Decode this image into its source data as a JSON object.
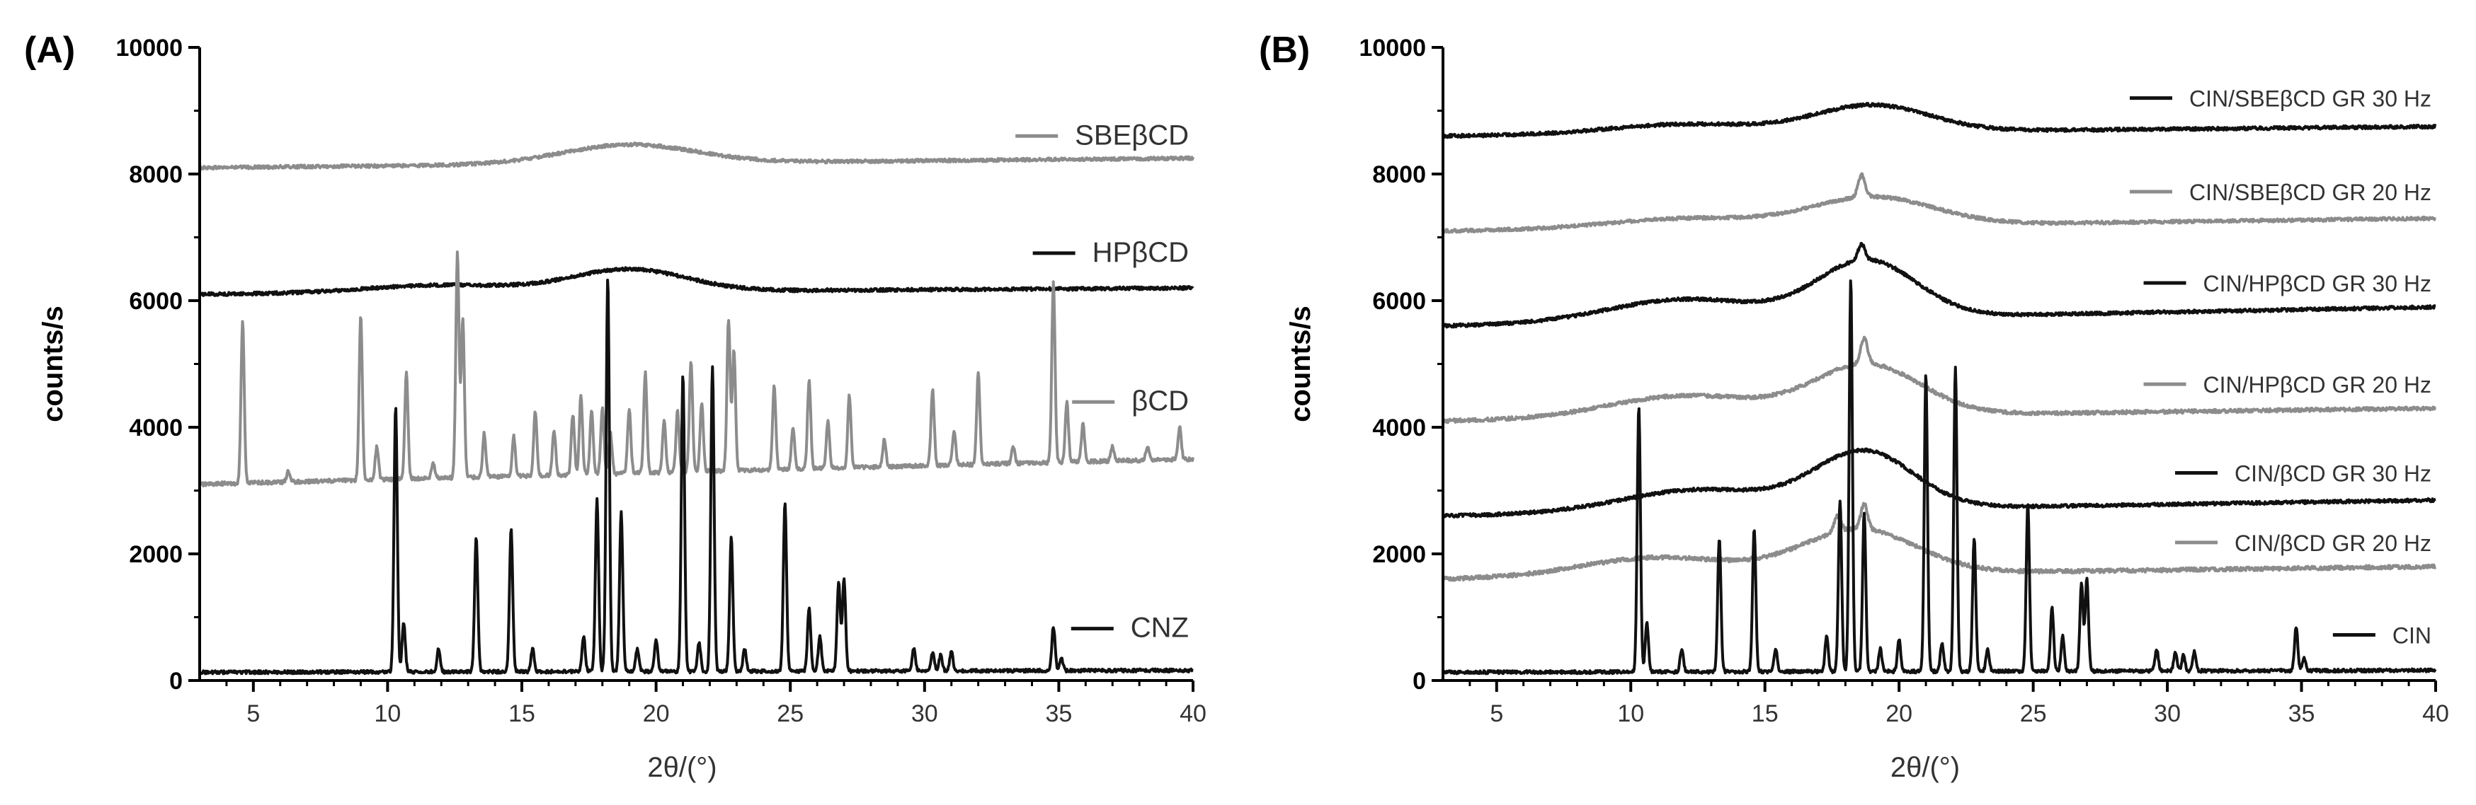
{
  "colors": {
    "black": "#111111",
    "gray": "#8c8c8c",
    "axis": "#000000"
  },
  "chart_data": [
    {
      "type": "line",
      "panel_label": "(A)",
      "xlabel": "2θ/(°)",
      "ylabel": "counts/s",
      "xlim": [
        3,
        40
      ],
      "ylim": [
        0,
        10000
      ],
      "x_ticks": [
        "5",
        "10",
        "15",
        "20",
        "25",
        "30",
        "35",
        "40"
      ],
      "y_ticks": [
        "0",
        "2000",
        "4000",
        "6000",
        "8000",
        "10000"
      ],
      "grid": false,
      "series": [
        {
          "name": "SBEβCD",
          "color": "gray",
          "type": "halo",
          "start": 8100,
          "end": 8250,
          "halo_center": 19,
          "halo_height": 300,
          "halo_width": 3.5,
          "broad_height": 0,
          "broad_center": 12,
          "noise": 25,
          "peaks": [],
          "legend_y": 8600
        },
        {
          "name": "HPβCD",
          "color": "black",
          "type": "halo",
          "start": 6100,
          "end": 6200,
          "halo_center": 19,
          "halo_height": 350,
          "halo_width": 3.0,
          "broad_height": 120,
          "broad_center": 12,
          "noise": 25,
          "peaks": [],
          "legend_y": 6750
        },
        {
          "name": "βCD",
          "color": "gray",
          "type": "crystalline",
          "baseline": 3100,
          "baseline_end": 3500,
          "noise": 30,
          "peaks": [
            [
              4.6,
              5650
            ],
            [
              6.3,
              3300
            ],
            [
              9.0,
              5750
            ],
            [
              9.6,
              3700
            ],
            [
              10.7,
              4850
            ],
            [
              11.7,
              3450
            ],
            [
              12.6,
              6750
            ],
            [
              12.8,
              5700
            ],
            [
              13.6,
              3900
            ],
            [
              14.7,
              3850
            ],
            [
              15.5,
              4250
            ],
            [
              16.2,
              3950
            ],
            [
              16.9,
              4200
            ],
            [
              17.2,
              4500
            ],
            [
              17.6,
              4250
            ],
            [
              18.0,
              4300
            ],
            [
              18.3,
              3900
            ],
            [
              19.0,
              4300
            ],
            [
              19.6,
              4850
            ],
            [
              20.3,
              4100
            ],
            [
              20.8,
              4250
            ],
            [
              21.3,
              5050
            ],
            [
              21.7,
              4400
            ],
            [
              22.7,
              5700
            ],
            [
              22.9,
              5200
            ],
            [
              24.4,
              4650
            ],
            [
              25.1,
              4000
            ],
            [
              25.7,
              4750
            ],
            [
              26.4,
              4100
            ],
            [
              27.2,
              4500
            ],
            [
              28.5,
              3800
            ],
            [
              30.3,
              4600
            ],
            [
              31.1,
              3950
            ],
            [
              32.0,
              4850
            ],
            [
              33.3,
              3700
            ],
            [
              34.8,
              6300
            ],
            [
              35.3,
              4400
            ],
            [
              35.9,
              4050
            ],
            [
              37.0,
              3700
            ],
            [
              38.3,
              3700
            ],
            [
              39.5,
              4000
            ]
          ],
          "legend_y": 4400
        },
        {
          "name": "CNZ",
          "color": "black",
          "type": "crystalline",
          "baseline": 130,
          "baseline_end": 160,
          "noise": 25,
          "peaks": [
            [
              10.3,
              4350
            ],
            [
              10.6,
              900
            ],
            [
              11.9,
              500
            ],
            [
              13.3,
              2250
            ],
            [
              14.6,
              2400
            ],
            [
              15.4,
              500
            ],
            [
              17.3,
              700
            ],
            [
              17.8,
              2850
            ],
            [
              18.2,
              6350
            ],
            [
              18.7,
              2650
            ],
            [
              19.3,
              500
            ],
            [
              20.0,
              650
            ],
            [
              21.0,
              4850
            ],
            [
              21.6,
              600
            ],
            [
              22.1,
              4950
            ],
            [
              22.8,
              2250
            ],
            [
              23.3,
              500
            ],
            [
              24.8,
              2800
            ],
            [
              25.7,
              1150
            ],
            [
              26.1,
              700
            ],
            [
              26.8,
              1550
            ],
            [
              27.0,
              1600
            ],
            [
              29.6,
              500
            ],
            [
              30.3,
              450
            ],
            [
              30.6,
              400
            ],
            [
              31.0,
              450
            ],
            [
              34.8,
              850
            ],
            [
              35.1,
              350
            ]
          ],
          "legend_y": 820
        }
      ]
    },
    {
      "type": "line",
      "panel_label": "(B)",
      "xlabel": "2θ/(°)",
      "ylabel": "counts/s",
      "xlim": [
        3,
        40
      ],
      "ylim": [
        0,
        10000
      ],
      "x_ticks": [
        "5",
        "10",
        "15",
        "20",
        "25",
        "30",
        "35",
        "40"
      ],
      "y_ticks": [
        "0",
        "2000",
        "4000",
        "6000",
        "8000",
        "10000"
      ],
      "grid": false,
      "series": [
        {
          "name": "CIN/SBEβCD GR 30 Hz",
          "color": "black",
          "type": "halo",
          "start": 8600,
          "end": 8750,
          "halo_center": 19,
          "halo_height": 420,
          "halo_width": 3.0,
          "broad_height": 150,
          "broad_center": 12,
          "noise": 25,
          "peaks": [],
          "legend_y": 9200
        },
        {
          "name": "CIN/SBEβCD GR 20 Hz",
          "color": "gray",
          "type": "halo",
          "start": 7100,
          "end": 7300,
          "halo_center": 19,
          "halo_height": 450,
          "halo_width": 3.2,
          "broad_height": 150,
          "broad_center": 12,
          "noise": 25,
          "peaks": [
            [
              18.6,
              350
            ]
          ],
          "legend_y": 7720
        },
        {
          "name": "CIN/HPβCD GR 30 Hz",
          "color": "black",
          "type": "halo",
          "start": 5600,
          "end": 5900,
          "halo_center": 18.8,
          "halo_height": 900,
          "halo_width": 2.6,
          "broad_height": 350,
          "broad_center": 12,
          "noise": 25,
          "peaks": [
            [
              18.6,
              250
            ]
          ],
          "legend_y": 6280
        },
        {
          "name": "CIN/HPβCD GR 20 Hz",
          "color": "gray",
          "type": "halo",
          "start": 4100,
          "end": 4300,
          "halo_center": 18.8,
          "halo_height": 800,
          "halo_width": 2.8,
          "broad_height": 350,
          "broad_center": 12,
          "noise": 28,
          "peaks": [
            [
              18.7,
              400
            ]
          ],
          "legend_y": 4680
        },
        {
          "name": "CIN/βCD GR 30 Hz",
          "color": "black",
          "type": "halo",
          "start": 2600,
          "end": 2850,
          "halo_center": 18.7,
          "halo_height": 900,
          "halo_width": 2.6,
          "broad_height": 350,
          "broad_center": 12.5,
          "noise": 25,
          "peaks": [],
          "legend_y": 3280
        },
        {
          "name": "CIN/βCD GR 20 Hz",
          "color": "gray",
          "type": "halo",
          "start": 1600,
          "end": 1800,
          "halo_center": 18.5,
          "halo_height": 700,
          "halo_width": 3.0,
          "broad_height": 300,
          "broad_center": 11,
          "noise": 30,
          "peaks": [
            [
              18.7,
              400
            ],
            [
              17.7,
              250
            ]
          ],
          "legend_y": 2180
        },
        {
          "name": "CIN",
          "color": "black",
          "type": "crystalline",
          "baseline": 130,
          "baseline_end": 160,
          "noise": 25,
          "peaks": [
            [
              10.3,
              4350
            ],
            [
              10.6,
              900
            ],
            [
              11.9,
              500
            ],
            [
              13.3,
              2250
            ],
            [
              14.6,
              2400
            ],
            [
              15.4,
              500
            ],
            [
              17.3,
              700
            ],
            [
              17.8,
              2850
            ],
            [
              18.2,
              6350
            ],
            [
              18.7,
              2650
            ],
            [
              19.3,
              500
            ],
            [
              20.0,
              650
            ],
            [
              21.0,
              4850
            ],
            [
              21.6,
              600
            ],
            [
              22.1,
              4950
            ],
            [
              22.8,
              2250
            ],
            [
              23.3,
              500
            ],
            [
              24.8,
              2800
            ],
            [
              25.7,
              1150
            ],
            [
              26.1,
              700
            ],
            [
              26.8,
              1550
            ],
            [
              27.0,
              1600
            ],
            [
              29.6,
              500
            ],
            [
              30.3,
              450
            ],
            [
              30.6,
              400
            ],
            [
              31.0,
              450
            ],
            [
              34.8,
              850
            ],
            [
              35.1,
              350
            ]
          ],
          "legend_y": 720
        }
      ]
    }
  ]
}
